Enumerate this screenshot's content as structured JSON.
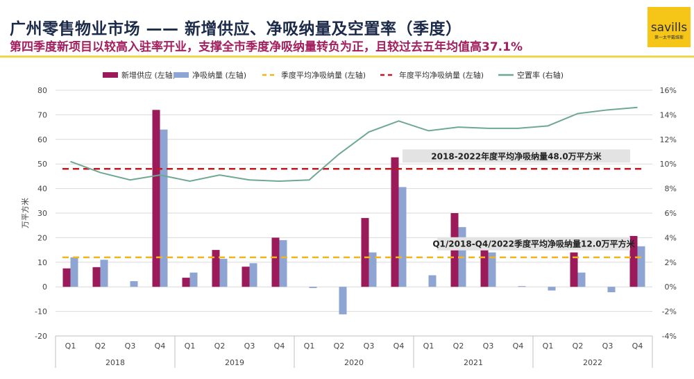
{
  "header": {
    "title": "广州零售物业市场 —— 新增供应、净吸纳量及空置率（季度）",
    "subtitle": "第四季度新项目以较高入驻率开业，支撑全市季度净吸纳量转负为正，且较过去五年均值高37.1%",
    "logo_text": "savills",
    "logo_sub": "第一太平戴维斯"
  },
  "chart_data": {
    "type": "bar",
    "ylabel": "万平方米",
    "ylim": [
      -20,
      80
    ],
    "yticks": [
      "-20",
      "-10",
      "0",
      "10",
      "20",
      "30",
      "40",
      "50",
      "60",
      "70",
      "80"
    ],
    "y2lim": [
      -4,
      16
    ],
    "y2ticks": [
      "-4%",
      "-2%",
      "0%",
      "2%",
      "4%",
      "6%",
      "8%",
      "10%",
      "12%",
      "14%",
      "16%"
    ],
    "categories": [
      "Q1",
      "Q2",
      "Q3",
      "Q4",
      "Q1",
      "Q2",
      "Q3",
      "Q4",
      "Q1",
      "Q2",
      "Q3",
      "Q4",
      "Q1",
      "Q2",
      "Q3",
      "Q4",
      "Q1",
      "Q2",
      "Q3",
      "Q4"
    ],
    "years": [
      "2018",
      "2019",
      "2020",
      "2021",
      "2022"
    ],
    "legend": [
      "新增供应 (左轴)",
      "净吸纳量 (左轴)",
      "季度平均净吸纳量 (左轴)",
      "年度平均净吸纳量 (左轴)",
      "空置率 (右轴)"
    ],
    "series": [
      {
        "name": "新增供应 (左轴)",
        "type": "bar",
        "color": "#9b1b5a",
        "values": [
          7.5,
          8,
          0,
          72,
          3.7,
          15,
          8.2,
          20,
          0,
          0,
          28,
          52.7,
          0,
          30,
          15,
          0,
          0,
          14,
          0,
          20.7
        ]
      },
      {
        "name": "净吸纳量 (左轴)",
        "type": "bar",
        "color": "#8ea4d2",
        "values": [
          12,
          11,
          2.3,
          64,
          5.8,
          11.4,
          9.6,
          19,
          -0.5,
          -11.2,
          14,
          40.6,
          4.7,
          24.3,
          14,
          0.3,
          -1.5,
          5.8,
          -2.2,
          16.5
        ]
      },
      {
        "name": "空置率 (右轴)",
        "type": "line",
        "color": "#6fa892",
        "values": [
          10.2,
          9.3,
          8.7,
          9.1,
          8.6,
          9.1,
          8.7,
          8.6,
          8.7,
          10.8,
          12.6,
          13.5,
          12.7,
          13.0,
          12.9,
          12.9,
          13.1,
          14.1,
          14.4,
          14.6
        ]
      }
    ],
    "reference_lines": [
      {
        "name": "季度平均净吸纳量 (左轴)",
        "value": 12.0,
        "color": "#f2b51c",
        "label": "Q1/2018-Q4/2022季度平均净吸纳量12.0万平方米"
      },
      {
        "name": "年度平均净吸纳量 (左轴)",
        "value": 48.0,
        "color": "#c0191f",
        "label": "2018-2022年度平均净吸纳量48.0万平方米"
      }
    ]
  }
}
